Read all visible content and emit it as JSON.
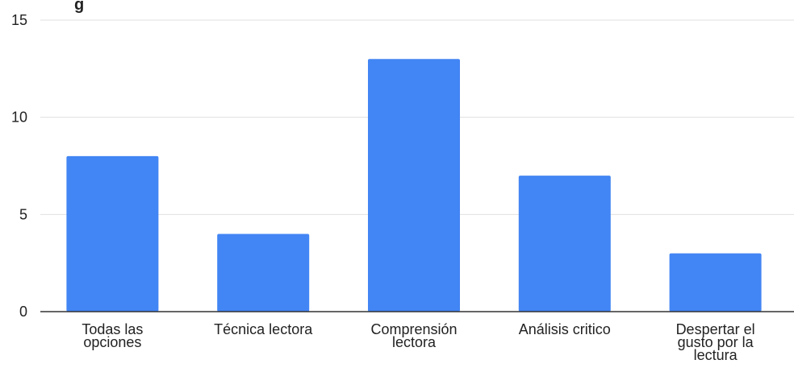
{
  "chart_data": {
    "type": "bar",
    "title_fragment": "g",
    "categories": [
      [
        "Todas las",
        "opciones"
      ],
      [
        "Técnica lectora"
      ],
      [
        "Comprensión",
        "lectora"
      ],
      [
        "Análisis critico"
      ],
      [
        "Despertar el",
        "gusto por la",
        "lectura"
      ]
    ],
    "category_names": [
      "Todas las opciones",
      "Técnica lectora",
      "Comprensión lectora",
      "Análisis critico",
      "Despertar el gusto por la lectura"
    ],
    "values": [
      8,
      4,
      13,
      7,
      3
    ],
    "ylim": [
      0,
      15
    ],
    "yticks": [
      "0",
      "5",
      "10",
      "15"
    ],
    "ytick_values": [
      0,
      5,
      10,
      15
    ],
    "grid": true,
    "legend": "none",
    "bar_color": "#4285f4"
  }
}
